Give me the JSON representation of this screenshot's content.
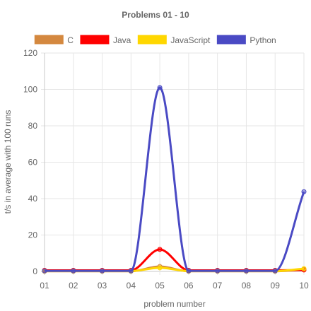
{
  "chart_data": {
    "type": "line",
    "title": "Problems 01 - 10",
    "xlabel": "problem number",
    "ylabel": "t/s in average with 100 runs",
    "categories": [
      "01",
      "02",
      "03",
      "04",
      "05",
      "06",
      "07",
      "08",
      "09",
      "10"
    ],
    "ylim": [
      0,
      120
    ],
    "yticks": [
      0,
      20,
      40,
      60,
      80,
      100,
      120
    ],
    "grid": true,
    "legend_position": "top",
    "series": [
      {
        "name": "C",
        "color": "#d4883f",
        "values": [
          0.1,
          0.1,
          0.1,
          0.1,
          2.7,
          0.1,
          0.1,
          0.1,
          0.1,
          1.0
        ]
      },
      {
        "name": "Java",
        "color": "#ff0000",
        "values": [
          0.6,
          0.6,
          0.6,
          0.6,
          12.1,
          0.6,
          0.6,
          0.6,
          0.6,
          0.8
        ]
      },
      {
        "name": "JavaScript",
        "color": "#ffd700",
        "values": [
          0.2,
          0.2,
          0.2,
          0.2,
          2.0,
          0.2,
          0.2,
          0.2,
          0.2,
          1.5
        ]
      },
      {
        "name": "Python",
        "color": "#4a4ac4",
        "values": [
          0.3,
          0.3,
          0.3,
          0.3,
          101.0,
          0.3,
          0.3,
          0.3,
          0.3,
          43.8
        ]
      }
    ]
  }
}
